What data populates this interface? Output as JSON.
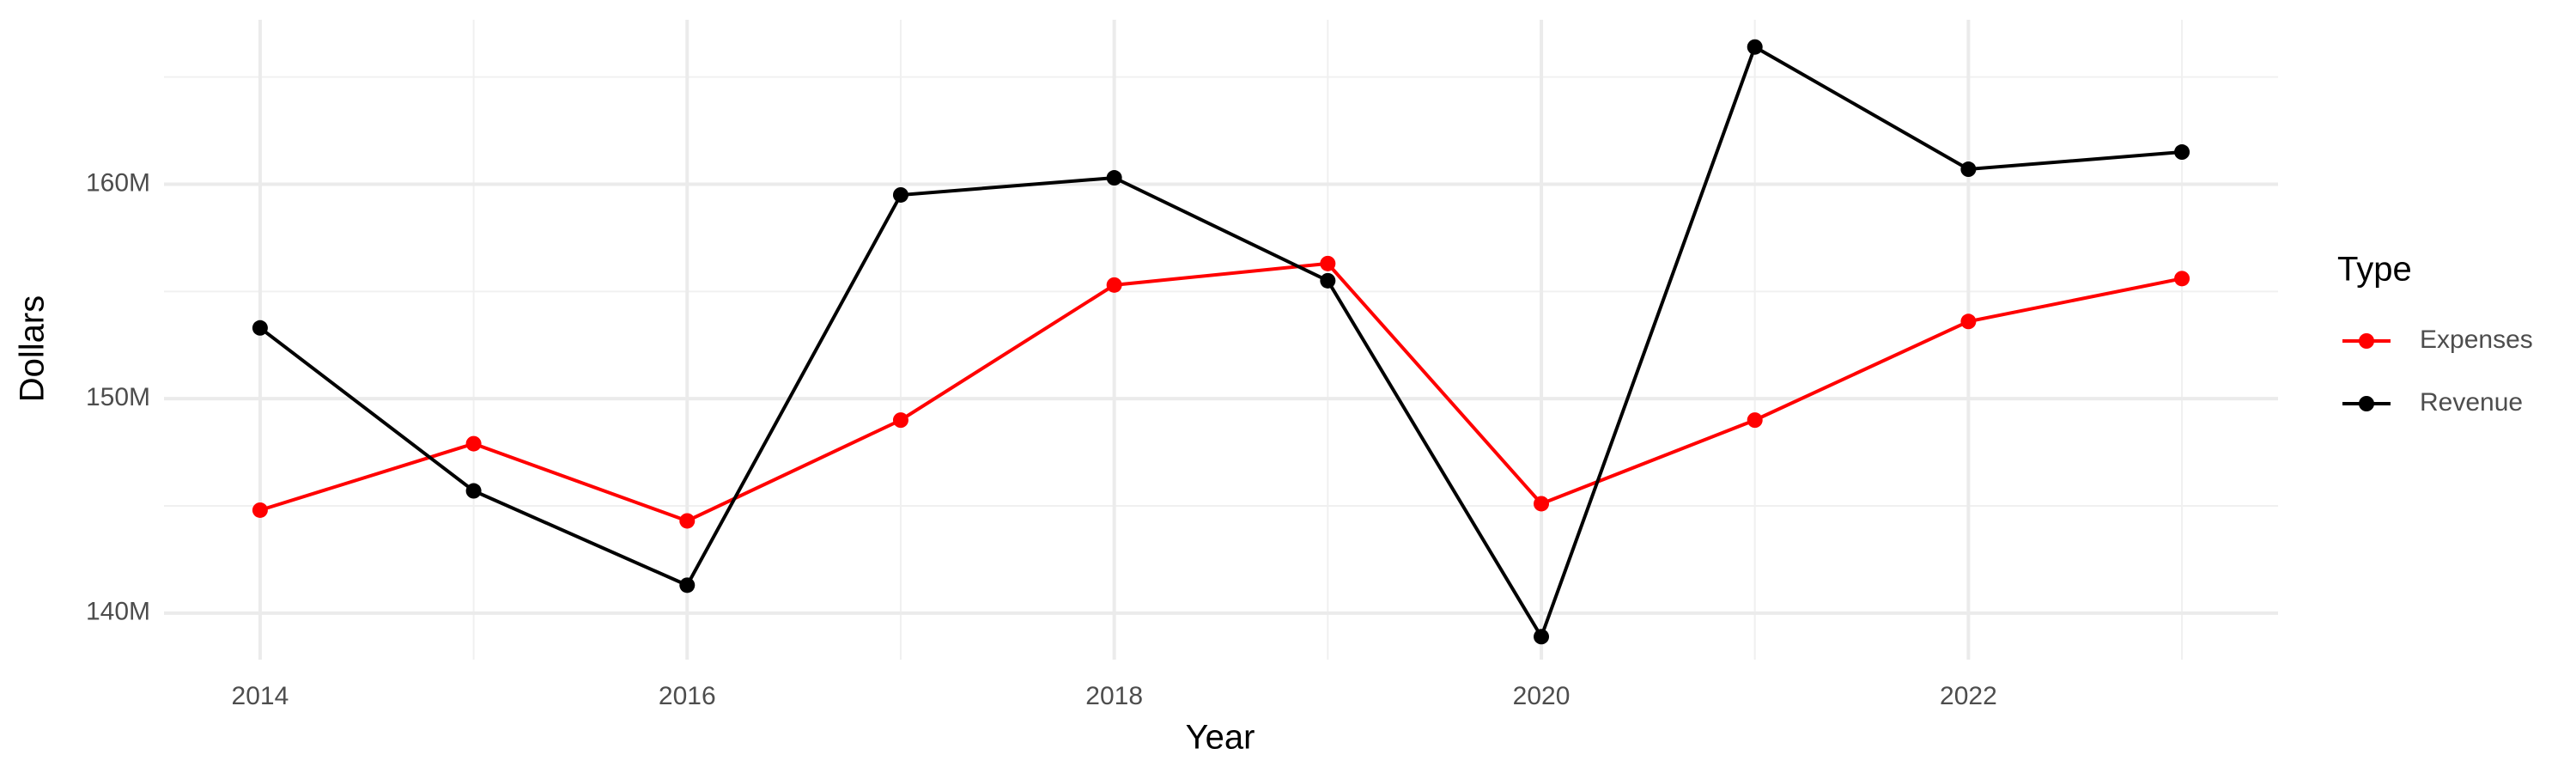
{
  "chart_data": {
    "type": "line",
    "x_label": "Year",
    "y_label": "Dollars",
    "legend_title": "Type",
    "legend_position": "right",
    "grid": true,
    "x": [
      2014,
      2015,
      2016,
      2017,
      2018,
      2019,
      2020,
      2021,
      2022,
      2023
    ],
    "series": [
      {
        "name": "Expenses",
        "color": "#ff0000",
        "values": [
          144800000,
          147900000,
          144300000,
          149000000,
          155300000,
          156300000,
          145100000,
          149000000,
          153600000,
          155600000
        ]
      },
      {
        "name": "Revenue",
        "color": "#000000",
        "values": [
          153300000,
          145700000,
          141300000,
          159500000,
          160300000,
          155500000,
          138900000,
          166400000,
          160700000,
          161500000
        ]
      }
    ],
    "xlim": [
      2013.55,
      2023.45
    ],
    "xticks": [
      2014,
      2016,
      2018,
      2020,
      2022
    ],
    "ylim": [
      137830000,
      167670000
    ],
    "yticks": [
      {
        "value": 140000000,
        "label": "140M"
      },
      {
        "value": 150000000,
        "label": "150M"
      },
      {
        "value": 160000000,
        "label": "160M"
      }
    ]
  }
}
